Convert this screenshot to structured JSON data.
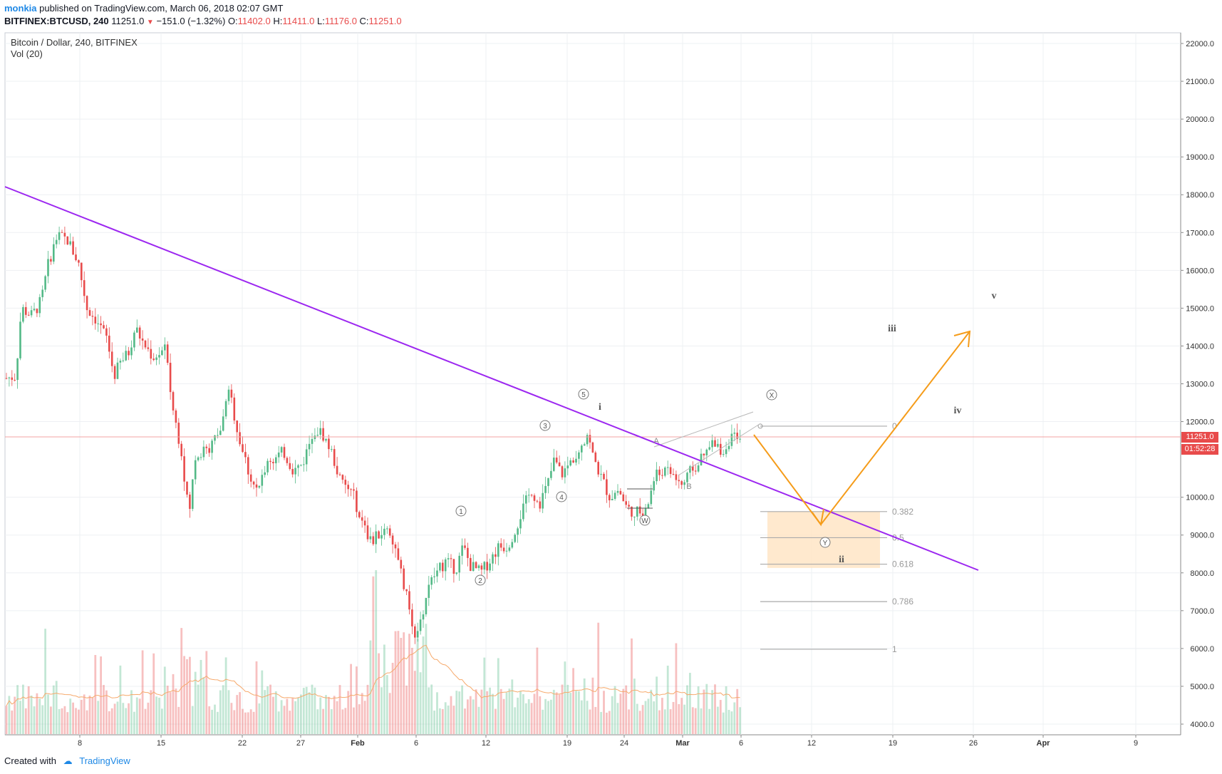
{
  "header": {
    "username": "monkia",
    "published_text": "published on TradingView.com, March 06, 2018 02:07 GMT",
    "symbol": "BITFINEX:BTCUSD, 240",
    "last": "11251.0",
    "change": "−151.0 (−1.32%)",
    "o_label": "O:",
    "o_value": "11402.0",
    "h_label": "H:",
    "h_value": "11411.0",
    "l_label": "L:",
    "l_value": "11176.0",
    "c_label": "C:",
    "c_value": "11251.0"
  },
  "legend": {
    "title": "Bitcoin / Dollar, 240, BITFINEX",
    "indicator": "Vol (20)"
  },
  "price_axis": {
    "labels": [
      "22000.0",
      "21000.0",
      "20000.0",
      "19000.0",
      "18000.0",
      "17000.0",
      "16000.0",
      "15000.0",
      "14000.0",
      "13000.0",
      "12000.0",
      "10000.0",
      "9000.0",
      "8000.0",
      "7000.0",
      "6000.0",
      "5000.0",
      "4000.0"
    ],
    "last_price": "11251.0",
    "countdown": "01:52:28"
  },
  "time_axis": {
    "labels": [
      "8",
      "15",
      "22",
      "27",
      "Feb",
      "6",
      "12",
      "19",
      "24",
      "Mar",
      "6",
      "12",
      "19",
      "26",
      "Apr",
      "9"
    ]
  },
  "annotations": {
    "wave_labels": [
      "i",
      "ii",
      "iii",
      "iv",
      "v"
    ],
    "circled_labels": [
      "1",
      "2",
      "3",
      "4",
      "5",
      "W",
      "X",
      "Y"
    ],
    "abc_labels": [
      "A",
      "B"
    ],
    "fib_levels": [
      "0",
      "0.382",
      "0.5",
      "0.618",
      "0.786",
      "1"
    ]
  },
  "colors": {
    "up": "#53b987",
    "down": "#e84b4b",
    "trendline": "#9c27f0",
    "projection": "#f59c1a",
    "fib_zone": "#ffe3c2"
  },
  "footer": {
    "created_with": "Created with",
    "brand": "TradingView"
  },
  "chart_data": {
    "type": "candlestick",
    "title": "Bitcoin / Dollar, 240, BITFINEX",
    "price_range": [
      3300,
      22300
    ],
    "last_price": 11251.0,
    "trendline": {
      "from": {
        "date": "2017-12-29",
        "price": 18050
      },
      "to": {
        "date": "2018-03-28",
        "price": 7650
      }
    },
    "projection_path": [
      {
        "date": "2018-03-07",
        "price": 11300
      },
      {
        "date": "2018-03-13",
        "price": 8850
      },
      {
        "date": "2018-03-26",
        "price": 14150
      }
    ],
    "fib_retracement": [
      {
        "level": "0",
        "price": 11880
      },
      {
        "level": "0.382",
        "price": 9620
      },
      {
        "level": "0.5",
        "price": 8930
      },
      {
        "level": "0.618",
        "price": 8230
      },
      {
        "level": "0.786",
        "price": 7240
      },
      {
        "level": "1",
        "price": 5980
      }
    ]
  }
}
